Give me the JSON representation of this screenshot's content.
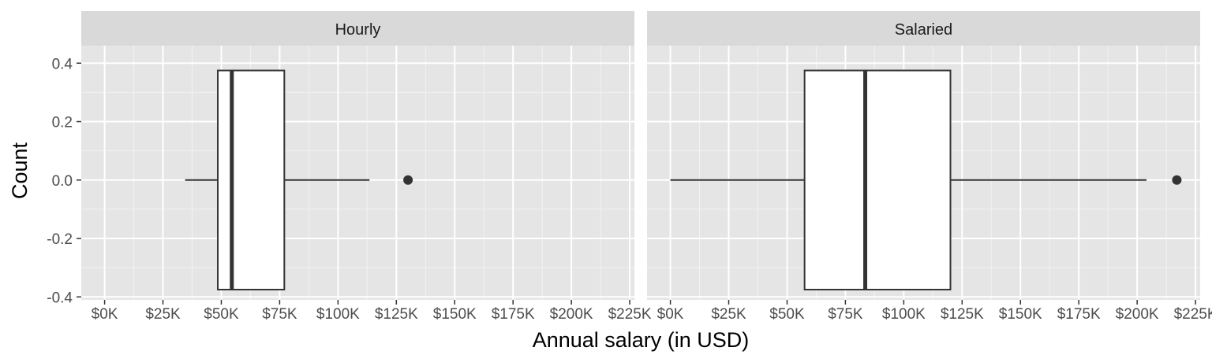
{
  "chart_data": {
    "type": "boxplot",
    "xlabel": "Annual salary (in USD)",
    "ylabel": "Count",
    "xlim": [
      -10000,
      227000
    ],
    "ylim": [
      -0.41,
      0.46
    ],
    "x_ticks": [
      0,
      25000,
      50000,
      75000,
      100000,
      125000,
      150000,
      175000,
      200000,
      225000
    ],
    "x_tick_labels": [
      "$0K",
      "$25K",
      "$50K",
      "$75K",
      "$100K",
      "$125K",
      "$150K",
      "$175K",
      "$200K",
      "$225K"
    ],
    "y_ticks": [
      0.4,
      0.2,
      0.0,
      -0.2,
      -0.4
    ],
    "y_tick_labels": [
      "0.4",
      "0.2",
      "0.0",
      "-0.2",
      "-0.4"
    ],
    "grid": true,
    "panel_background": "#e5e5e5",
    "strip_background": "#d9d9d9",
    "facets": [
      {
        "name": "Hourly",
        "whisker_low": 34500,
        "q1": 48500,
        "median": 54500,
        "q3": 77000,
        "whisker_high": 113500,
        "outliers": [
          130000
        ],
        "box_ymin": -0.375,
        "box_ymax": 0.375
      },
      {
        "name": "Salaried",
        "whisker_low": 0,
        "q1": 57500,
        "median": 83500,
        "q3": 120000,
        "whisker_high": 204000,
        "outliers": [
          217000
        ],
        "box_ymin": -0.375,
        "box_ymax": 0.375
      }
    ]
  }
}
